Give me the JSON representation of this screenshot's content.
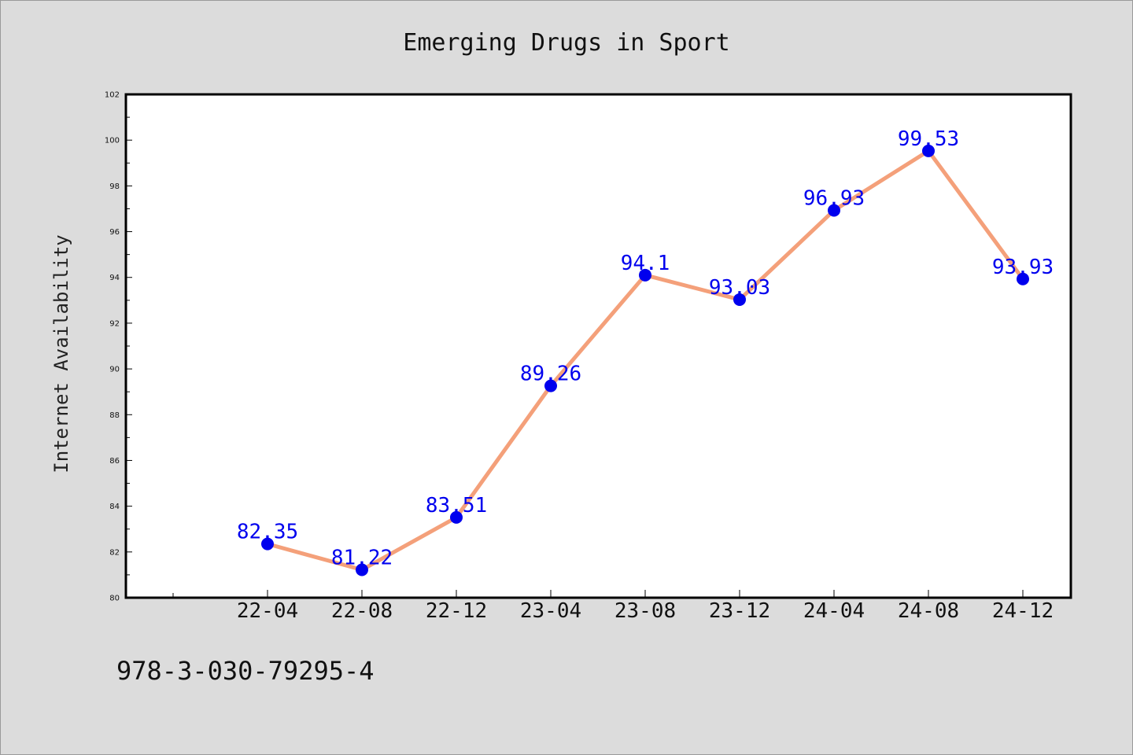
{
  "chart_data": {
    "type": "line",
    "title": "Emerging Drugs in Sport",
    "xlabel": "",
    "ylabel": "Internet Availability",
    "categories": [
      "22-04",
      "22-08",
      "22-12",
      "23-04",
      "23-08",
      "23-12",
      "24-04",
      "24-08",
      "24-12"
    ],
    "series": [
      {
        "values": [
          82.35,
          81.22,
          83.51,
          89.26,
          94.1,
          93.03,
          96.93,
          99.53,
          93.93
        ],
        "data_labels": [
          "82.35",
          "81.22",
          "83.51",
          "89.26",
          "94.1",
          "93.03",
          "96.93",
          "99.53",
          "93.93"
        ],
        "line_color": "#f4a07a",
        "marker_color": "#0000ee"
      }
    ],
    "ylim": [
      80,
      102
    ],
    "yticks": [
      "80",
      "82",
      "84",
      "86",
      "88",
      "90",
      "92",
      "94",
      "96",
      "98",
      "100",
      "102"
    ],
    "grid": false,
    "legend": "none"
  },
  "footer_text": "978-3-030-79295-4",
  "colors": {
    "page_background": "#dcdcdc",
    "plot_background": "#ffffff",
    "axis": "#000000",
    "data_label": "#0000ee"
  }
}
